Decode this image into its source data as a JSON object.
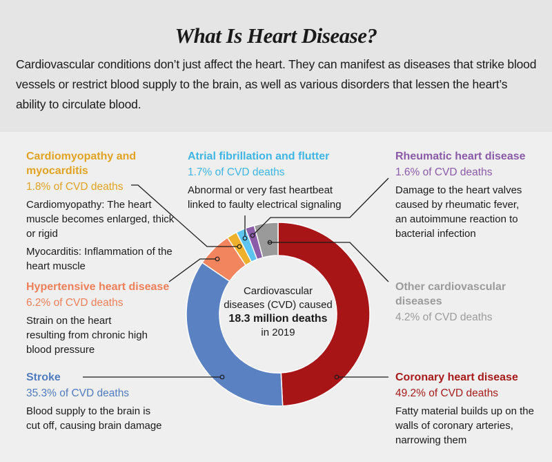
{
  "header": {
    "title": "What Is Heart Disease?",
    "intro": "Cardiovascular conditions don’t just affect the heart. They can manifest as diseases that strike blood vessels or restrict blood supply to the brain, as well as various disorders that lessen the heart’s ability to circulate blood."
  },
  "center": {
    "line1": "Cardiovascular",
    "line2": "diseases (CVD) caused",
    "line3": "18.3 million deaths",
    "line4": "in 2019"
  },
  "labels": {
    "cardiomyopathy": {
      "title": "Cardiomyopathy and myocarditis",
      "pct": "1.8% of CVD deaths",
      "desc1": "Cardiomyopathy: The heart muscle becomes enlarged, thick or rigid",
      "desc2": "Myocarditis: Inflammation of the heart muscle"
    },
    "atrial": {
      "title": "Atrial fibrillation and flutter",
      "pct": "1.7% of CVD deaths",
      "desc1": "Abnormal or very fast heartbeat linked to faulty electrical signaling"
    },
    "rheumatic": {
      "title": "Rheumatic heart disease",
      "pct": "1.6% of CVD deaths",
      "desc1": "Damage to the heart valves caused by rheumatic fever, an autoimmune reaction to bacterial infection"
    },
    "hypertensive": {
      "title": "Hypertensive heart disease",
      "pct": "6.2% of CVD deaths",
      "desc1": "Strain on the heart resulting from chronic high blood pressure"
    },
    "other": {
      "title": "Other cardiovascular diseases",
      "pct": "4.2% of CVD deaths"
    },
    "stroke": {
      "title": "Stroke",
      "pct": "35.3% of CVD deaths",
      "desc1": "Blood supply to the brain is cut off, causing brain damage"
    },
    "coronary": {
      "title": "Coronary heart disease",
      "pct": "49.2% of CVD deaths",
      "desc1": "Fatty material builds up on the walls of coronary arteries, narrowing them"
    }
  },
  "chart_data": {
    "type": "pie",
    "variant": "donut",
    "title": "What Is Heart Disease?",
    "total_label": "18.3 million deaths in 2019",
    "categories": [
      "Coronary heart disease",
      "Stroke",
      "Hypertensive heart disease",
      "Cardiomyopathy and myocarditis",
      "Atrial fibrillation and flutter",
      "Rheumatic heart disease",
      "Other cardiovascular diseases"
    ],
    "values": [
      49.2,
      35.3,
      6.2,
      1.8,
      1.7,
      1.6,
      4.2
    ],
    "unit": "% of CVD deaths",
    "colors": [
      "#a81517",
      "#5a82c3",
      "#f2845e",
      "#efb12b",
      "#5cc4ee",
      "#8b5caa",
      "#9a9a9a"
    ],
    "label_colors": [
      "#a81a1a",
      "#4f7bbf",
      "#ef7f58",
      "#e2a222",
      "#3db5e5",
      "#8a5aa8",
      "#9b9b9b"
    ]
  }
}
